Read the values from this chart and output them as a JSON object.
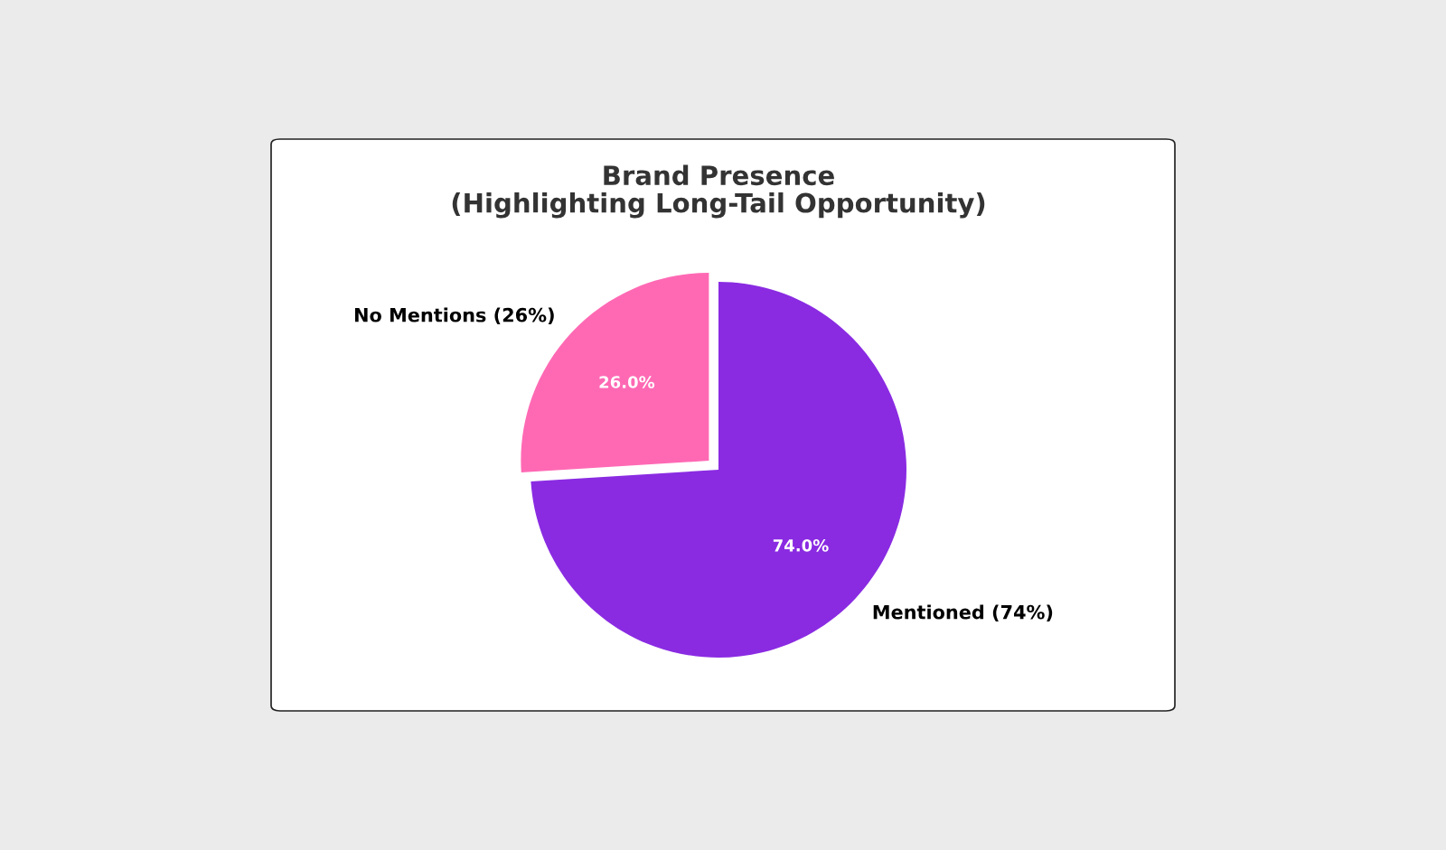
{
  "chart_data": {
    "type": "pie",
    "title": "Brand Presence\n(Highlighting Long-Tail Opportunity)",
    "categories": [
      "No Mentions (26%)",
      "Mentioned (74%)"
    ],
    "values": [
      26,
      74
    ],
    "colors": [
      "#ff69b4",
      "#8a2be2"
    ],
    "value_labels": [
      "26.0%",
      "74.0%"
    ]
  }
}
